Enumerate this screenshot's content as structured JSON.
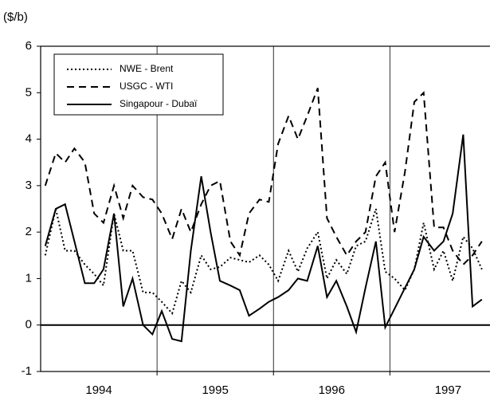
{
  "chart_data": {
    "type": "line",
    "y_label": "($/b)",
    "x": [
      1994.04,
      1994.13,
      1994.21,
      1994.29,
      1994.38,
      1994.46,
      1994.54,
      1994.63,
      1994.71,
      1994.79,
      1994.88,
      1994.96,
      1995.04,
      1995.13,
      1995.21,
      1995.29,
      1995.38,
      1995.46,
      1995.54,
      1995.63,
      1995.71,
      1995.79,
      1995.88,
      1995.96,
      1996.04,
      1996.13,
      1996.21,
      1996.29,
      1996.38,
      1996.46,
      1996.54,
      1996.63,
      1996.71,
      1996.79,
      1996.88,
      1996.96,
      1997.04,
      1997.13,
      1997.21,
      1997.29,
      1997.38,
      1997.46,
      1997.54,
      1997.63,
      1997.71,
      1997.79
    ],
    "series": [
      {
        "name": "NWE - Brent",
        "color": "#000000",
        "style": "dotted",
        "values": [
          1.5,
          2.5,
          1.6,
          1.6,
          1.3,
          1.1,
          0.85,
          2.4,
          1.6,
          1.6,
          0.7,
          0.7,
          0.5,
          0.25,
          0.95,
          0.7,
          1.5,
          1.2,
          1.25,
          1.45,
          1.4,
          1.35,
          1.5,
          1.3,
          0.95,
          1.6,
          1.15,
          1.65,
          2.0,
          1.0,
          1.4,
          1.1,
          1.7,
          1.8,
          2.5,
          1.15,
          1.0,
          0.75,
          1.2,
          2.2,
          1.2,
          1.6,
          0.95,
          1.9,
          1.65,
          1.2
        ]
      },
      {
        "name": "USGC - WTI",
        "color": "#000000",
        "style": "dashed",
        "values": [
          3.0,
          3.7,
          3.5,
          3.8,
          3.5,
          2.4,
          2.2,
          3.0,
          2.3,
          3.0,
          2.75,
          2.7,
          2.4,
          1.85,
          2.5,
          2.0,
          2.6,
          3.0,
          3.1,
          1.8,
          1.5,
          2.4,
          2.7,
          2.65,
          3.9,
          4.5,
          4.0,
          4.5,
          5.1,
          2.3,
          1.9,
          1.5,
          1.8,
          2.0,
          3.2,
          3.5,
          2.0,
          3.3,
          4.8,
          5.0,
          2.1,
          2.1,
          1.6,
          1.3,
          1.5,
          1.8
        ]
      },
      {
        "name": "Singapour - Dubaï",
        "color": "#000000",
        "style": "solid",
        "values": [
          1.7,
          2.5,
          2.6,
          1.8,
          0.9,
          0.9,
          1.2,
          2.4,
          0.4,
          1.0,
          0.0,
          -0.2,
          0.3,
          -0.3,
          -0.35,
          1.6,
          3.2,
          2.0,
          0.95,
          0.85,
          0.75,
          0.2,
          0.35,
          0.5,
          0.6,
          0.75,
          1.0,
          0.95,
          1.7,
          0.6,
          0.95,
          0.4,
          -0.15,
          0.8,
          1.8,
          -0.05,
          0.35,
          0.8,
          1.2,
          1.9,
          1.6,
          1.8,
          2.4,
          4.1,
          0.4,
          0.55
        ]
      }
    ],
    "xlim": [
      1994,
      1997.86
    ],
    "xticks": [
      {
        "value": 1994.5,
        "label": "1994"
      },
      {
        "value": 1995.5,
        "label": "1995"
      },
      {
        "value": 1996.5,
        "label": "1996"
      },
      {
        "value": 1997.5,
        "label": "1997"
      }
    ],
    "xgrid": [
      1995,
      1996,
      1997
    ],
    "ylim": [
      -1,
      6
    ],
    "yticks": [
      -1,
      0,
      1,
      2,
      3,
      4,
      5,
      6
    ],
    "legend": "upper left"
  }
}
